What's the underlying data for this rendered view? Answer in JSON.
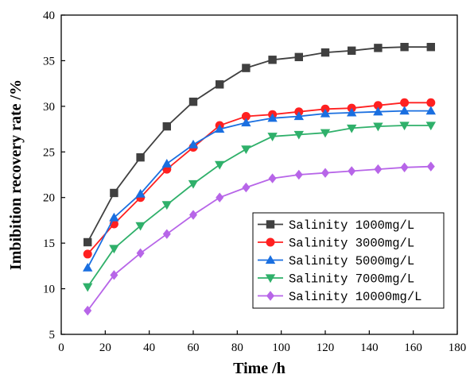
{
  "chart_data": {
    "type": "line",
    "xlabel": "Time /h",
    "ylabel": "Imbibition recovery rate /%",
    "xlim": [
      0,
      180
    ],
    "ylim": [
      5,
      40
    ],
    "xticks": [
      "0",
      "20",
      "40",
      "60",
      "80",
      "100",
      "120",
      "140",
      "160",
      "180"
    ],
    "yticks": [
      "5",
      "10",
      "15",
      "20",
      "25",
      "30",
      "35",
      "40"
    ],
    "grid": false,
    "legend_position": "bottom-right",
    "x": [
      12,
      24,
      36,
      48,
      60,
      72,
      84,
      96,
      108,
      120,
      132,
      144,
      156,
      168
    ],
    "series": [
      {
        "name": "Salinity 1000mg/L",
        "color": "#404040",
        "marker": "square",
        "values": [
          15.1,
          20.5,
          24.4,
          27.8,
          30.5,
          32.4,
          34.2,
          35.1,
          35.4,
          35.9,
          36.1,
          36.4,
          36.5,
          36.5
        ]
      },
      {
        "name": "Salinity 3000mg/L",
        "color": "#ff2020",
        "marker": "circle",
        "values": [
          13.8,
          17.1,
          20.0,
          23.1,
          25.5,
          27.9,
          28.9,
          29.1,
          29.4,
          29.7,
          29.8,
          30.1,
          30.4,
          30.4
        ]
      },
      {
        "name": "Salinity 5000mg/L",
        "color": "#1a6fe0",
        "marker": "triangle-up",
        "values": [
          12.3,
          17.8,
          20.4,
          23.7,
          25.8,
          27.5,
          28.2,
          28.7,
          28.9,
          29.2,
          29.3,
          29.4,
          29.5,
          29.5
        ]
      },
      {
        "name": "Salinity 7000mg/L",
        "color": "#2fb06a",
        "marker": "triangle-down",
        "values": [
          10.2,
          14.4,
          16.9,
          19.2,
          21.5,
          23.6,
          25.3,
          26.7,
          26.9,
          27.1,
          27.6,
          27.8,
          27.9,
          27.9
        ]
      },
      {
        "name": "Salinity 10000mg/L",
        "color": "#b765e8",
        "marker": "diamond",
        "values": [
          7.6,
          11.5,
          13.9,
          16.0,
          18.1,
          20.0,
          21.1,
          22.1,
          22.5,
          22.7,
          22.9,
          23.1,
          23.3,
          23.4
        ]
      }
    ]
  }
}
